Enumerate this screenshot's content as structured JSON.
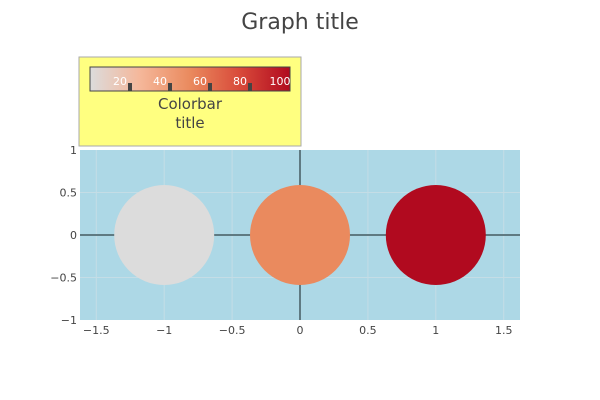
{
  "chart_data": {
    "type": "scatter",
    "title": "Graph title",
    "xlabel": "",
    "ylabel": "",
    "xlim": [
      -1.62,
      1.62
    ],
    "ylim": [
      -1,
      1
    ],
    "x_ticks": [
      -1.5,
      -1,
      -0.5,
      0,
      0.5,
      1,
      1.5
    ],
    "x_tick_labels": [
      "−1.5",
      "−1",
      "−0.5",
      "0",
      "0.5",
      "1",
      "1.5"
    ],
    "y_ticks": [
      -1,
      -0.5,
      0,
      0.5,
      1
    ],
    "y_tick_labels": [
      "−1",
      "−0.5",
      "0",
      "0.5",
      "1"
    ],
    "grid": true,
    "zero_lines": true,
    "marker_shape": "circle",
    "points": [
      {
        "x": -1,
        "y": 0,
        "color_value": 0,
        "color": "#dcdcdc"
      },
      {
        "x": 0,
        "y": 0,
        "color_value": 50,
        "color": "#ea8a5e"
      },
      {
        "x": 1,
        "y": 0,
        "color_value": 100,
        "color": "#b10a1f"
      }
    ],
    "colorbar": {
      "title_lines": [
        "Colorbar",
        "title"
      ],
      "range": [
        0,
        100
      ],
      "ticks": [
        20,
        40,
        60,
        80,
        100
      ],
      "tick_labels": [
        "20",
        "40",
        "60",
        "80",
        "100"
      ],
      "colorscale": [
        "#dcdcdc",
        "#f5b79a",
        "#ea8a5e",
        "#d84a3a",
        "#b10a1f"
      ],
      "orientation": "horizontal",
      "placement": "top-left",
      "background": "#ffff80",
      "border": "#aaaaaa"
    },
    "plot_background": "#add8e6"
  }
}
